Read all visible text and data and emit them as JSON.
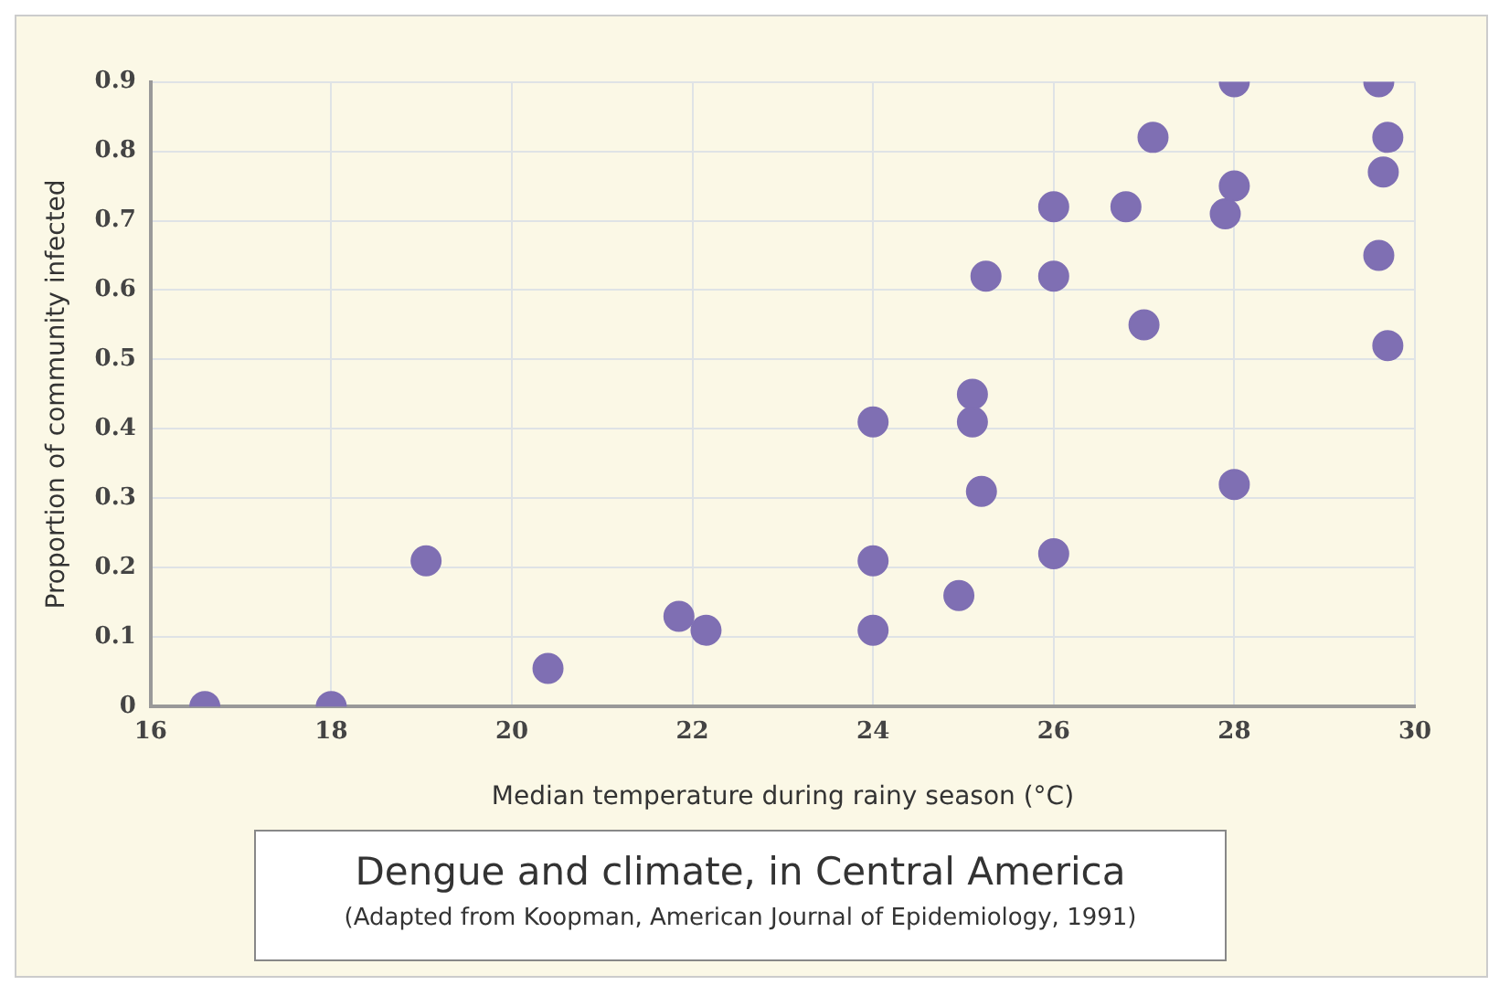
{
  "chart_data": {
    "type": "scatter",
    "title": "Dengue and climate, in Central America",
    "annotations": [
      "(Adapted from Koopman, American Journal of Epidemiology, 1991)"
    ],
    "xlabel": "Median temperature during rainy season (°C)",
    "ylabel": "Proportion of community infected",
    "series": [
      {
        "color": "#7f6fb3",
        "x": [
          16.6,
          18.0,
          19.05,
          20.4,
          21.85,
          22.15,
          24,
          24,
          24,
          24.95,
          25.1,
          25.1,
          25.2,
          25.25,
          26,
          26,
          26,
          26.8,
          27.0,
          27.1,
          28,
          27.9,
          28,
          28,
          29.6,
          29.65,
          29.7,
          29.6,
          29.7
        ],
        "values": [
          0,
          0,
          0.21,
          0.055,
          0.13,
          0.11,
          0.11,
          0.21,
          0.41,
          0.16,
          0.41,
          0.45,
          0.31,
          0.62,
          0.22,
          0.62,
          0.72,
          0.72,
          0.55,
          0.82,
          0.32,
          0.71,
          0.75,
          0.9,
          0.9,
          0.77,
          0.82,
          0.65,
          0.52
        ]
      }
    ],
    "xlim": [
      16,
      30
    ],
    "xticks": [
      16,
      18,
      20,
      22,
      24,
      26,
      28,
      30
    ],
    "ylim": [
      0,
      0.9
    ],
    "yticks": [
      0,
      0.1,
      0.2,
      0.3,
      0.4,
      0.5,
      0.6,
      0.7,
      0.8,
      0.9
    ],
    "grid": true,
    "marker": "circle",
    "legend": false
  }
}
